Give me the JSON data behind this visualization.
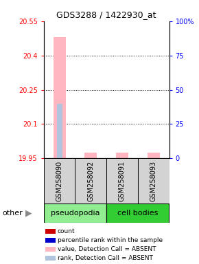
{
  "title": "GDS3288 / 1422930_at",
  "samples": [
    "GSM258090",
    "GSM258092",
    "GSM258091",
    "GSM258093"
  ],
  "groups": [
    "pseudopodia",
    "pseudopodia",
    "cell bodies",
    "cell bodies"
  ],
  "ylim_left": [
    19.95,
    20.55
  ],
  "ylim_right": [
    0,
    100
  ],
  "yticks_left": [
    19.95,
    20.1,
    20.25,
    20.4,
    20.55
  ],
  "ytick_labels_left": [
    "19.95",
    "20.1",
    "20.25",
    "20.4",
    "20.55"
  ],
  "yticks_right": [
    0,
    25,
    50,
    75,
    100
  ],
  "ytick_labels_right": [
    "0",
    "25",
    "50",
    "75",
    "100%"
  ],
  "pink_bar_values": [
    20.48,
    19.975,
    19.975,
    19.975
  ],
  "light_blue_bar_value": 20.19,
  "light_blue_bar_index": 0,
  "bar_width": 0.4,
  "pseudopodia_color": "#90ee90",
  "cell_bodies_color": "#32cd32",
  "sample_box_color": "#d3d3d3",
  "legend_items": [
    {
      "color": "#cc0000",
      "label": "count"
    },
    {
      "color": "#0000cc",
      "label": "percentile rank within the sample"
    },
    {
      "color": "#ffb6c1",
      "label": "value, Detection Call = ABSENT"
    },
    {
      "color": "#b0c4de",
      "label": "rank, Detection Call = ABSENT"
    }
  ]
}
